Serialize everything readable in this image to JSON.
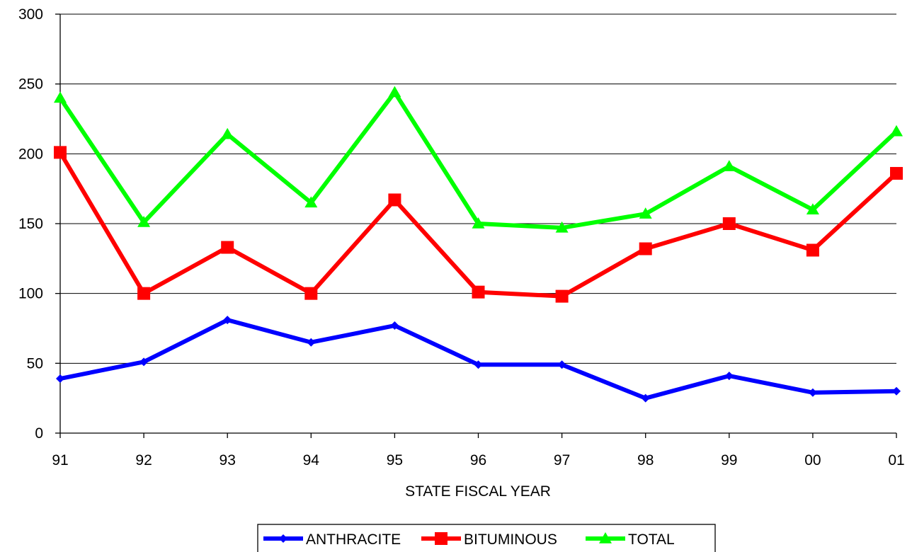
{
  "chart_data": {
    "type": "line",
    "title": "",
    "xlabel": "STATE FISCAL YEAR",
    "ylabel": "",
    "categories": [
      "91",
      "92",
      "93",
      "94",
      "95",
      "96",
      "97",
      "98",
      "99",
      "00",
      "01"
    ],
    "ylim": [
      0,
      300
    ],
    "yticks": [
      0,
      50,
      100,
      150,
      200,
      250,
      300
    ],
    "grid": true,
    "legend_position": "bottom",
    "series": [
      {
        "name": "ANTHRACITE",
        "color": "#0000ff",
        "marker": "diamond",
        "values": [
          39,
          51,
          81,
          65,
          77,
          49,
          49,
          25,
          41,
          29,
          30
        ]
      },
      {
        "name": "BITUMINOUS",
        "color": "#ff0000",
        "marker": "square",
        "values": [
          201,
          100,
          133,
          100,
          167,
          101,
          98,
          132,
          150,
          131,
          186
        ]
      },
      {
        "name": "TOTAL",
        "color": "#00ff00",
        "marker": "triangle",
        "values": [
          240,
          151,
          214,
          165,
          244,
          150,
          147,
          157,
          191,
          160,
          216
        ]
      }
    ]
  }
}
